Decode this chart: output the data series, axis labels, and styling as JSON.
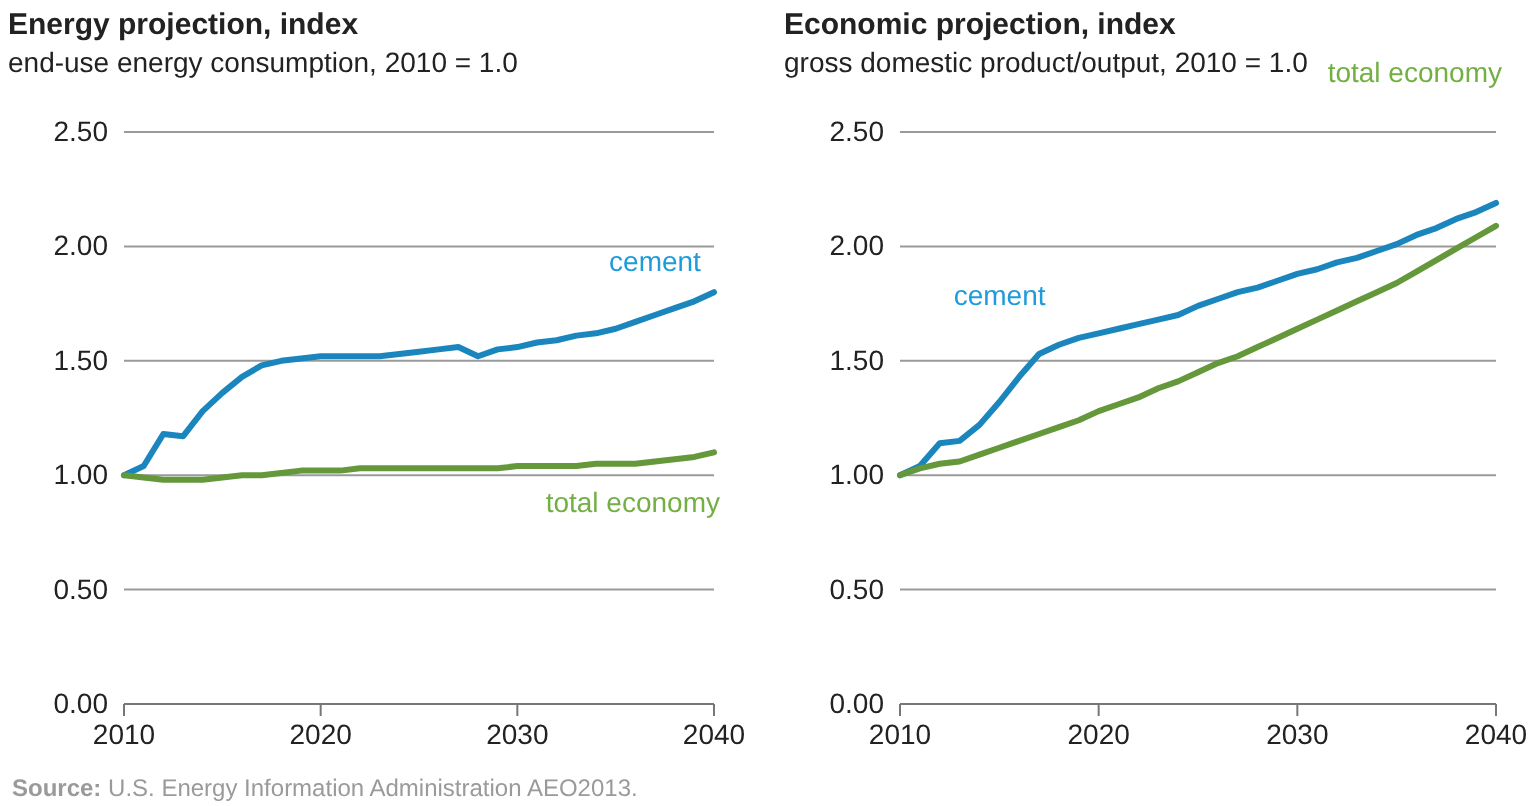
{
  "chart_data": [
    {
      "type": "line",
      "title": "Energy projection, index",
      "subtitle": "end-use energy consumption, 2010 = 1.0",
      "x": [
        2010,
        2011,
        2012,
        2013,
        2014,
        2015,
        2016,
        2017,
        2018,
        2019,
        2020,
        2021,
        2022,
        2023,
        2024,
        2025,
        2026,
        2027,
        2028,
        2029,
        2030,
        2031,
        2032,
        2033,
        2034,
        2035,
        2036,
        2037,
        2038,
        2039,
        2040
      ],
      "series": [
        {
          "name": "cement",
          "color": "#1a86bd",
          "values": [
            1.0,
            1.04,
            1.18,
            1.17,
            1.28,
            1.36,
            1.43,
            1.48,
            1.5,
            1.51,
            1.52,
            1.52,
            1.52,
            1.52,
            1.53,
            1.54,
            1.55,
            1.56,
            1.52,
            1.55,
            1.56,
            1.58,
            1.59,
            1.61,
            1.62,
            1.64,
            1.67,
            1.7,
            1.73,
            1.76,
            1.8
          ]
        },
        {
          "name": "total economy",
          "color": "#64983a",
          "values": [
            1.0,
            0.99,
            0.98,
            0.98,
            0.98,
            0.99,
            1.0,
            1.0,
            1.01,
            1.02,
            1.02,
            1.02,
            1.03,
            1.03,
            1.03,
            1.03,
            1.03,
            1.03,
            1.03,
            1.03,
            1.04,
            1.04,
            1.04,
            1.04,
            1.05,
            1.05,
            1.05,
            1.06,
            1.07,
            1.08,
            1.1
          ]
        }
      ],
      "xlim": [
        2010,
        2040
      ],
      "xticks": [
        2010,
        2020,
        2030,
        2040
      ],
      "ylim": [
        0,
        2.5
      ],
      "yticks": [
        {
          "value": 0,
          "label": "0.00"
        },
        {
          "value": 0.5,
          "label": "0.50"
        },
        {
          "value": 1,
          "label": "1.00"
        },
        {
          "value": 1.5,
          "label": "1.50"
        },
        {
          "value": 2,
          "label": "2.00"
        },
        {
          "value": 2.5,
          "label": "2.50"
        }
      ],
      "grid": "y",
      "legend": false,
      "marker": "none",
      "line_style": "solid",
      "annotations": [
        "Source: U.S. Energy Information Administration AEO2013."
      ]
    },
    {
      "type": "line",
      "title": "Economic projection, index",
      "subtitle": "gross domestic product/output, 2010 = 1.0",
      "x": [
        2010,
        2011,
        2012,
        2013,
        2014,
        2015,
        2016,
        2017,
        2018,
        2019,
        2020,
        2021,
        2022,
        2023,
        2024,
        2025,
        2026,
        2027,
        2028,
        2029,
        2030,
        2031,
        2032,
        2033,
        2034,
        2035,
        2036,
        2037,
        2038,
        2039,
        2040
      ],
      "series": [
        {
          "name": "cement",
          "color": "#1a86bd",
          "values": [
            1.0,
            1.04,
            1.14,
            1.15,
            1.22,
            1.32,
            1.43,
            1.53,
            1.57,
            1.6,
            1.62,
            1.64,
            1.66,
            1.68,
            1.7,
            1.74,
            1.77,
            1.8,
            1.82,
            1.85,
            1.88,
            1.9,
            1.93,
            1.95,
            1.98,
            2.01,
            2.05,
            2.08,
            2.12,
            2.15,
            2.19
          ]
        },
        {
          "name": "total economy",
          "color": "#64983a",
          "values": [
            1.0,
            1.03,
            1.05,
            1.06,
            1.09,
            1.12,
            1.15,
            1.18,
            1.21,
            1.24,
            1.28,
            1.31,
            1.34,
            1.38,
            1.41,
            1.45,
            1.49,
            1.52,
            1.56,
            1.6,
            1.64,
            1.68,
            1.72,
            1.76,
            1.8,
            1.84,
            1.89,
            1.94,
            1.99,
            2.04,
            2.09
          ]
        }
      ],
      "xlim": [
        2010,
        2040
      ],
      "xticks": [
        2010,
        2020,
        2030,
        2040
      ],
      "ylim": [
        0,
        2.5
      ],
      "yticks": [
        {
          "value": 0,
          "label": "0.00"
        },
        {
          "value": 0.5,
          "label": "0.50"
        },
        {
          "value": 1,
          "label": "1.00"
        },
        {
          "value": 1.5,
          "label": "1.50"
        },
        {
          "value": 2,
          "label": "2.00"
        },
        {
          "value": 2.5,
          "label": "2.50"
        }
      ],
      "grid": "y",
      "legend": false,
      "marker": "none",
      "line_style": "solid"
    }
  ]
}
